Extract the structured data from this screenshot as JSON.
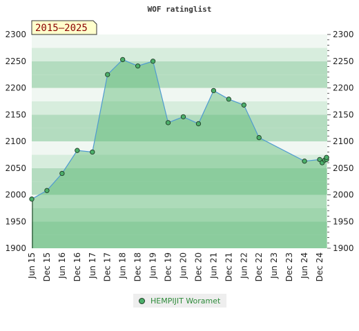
{
  "chart_data": {
    "type": "area",
    "title": "WOF ratinglist",
    "range_badge": "2015–2025",
    "ylim": [
      1900,
      2300
    ],
    "yticks": [
      1900,
      1950,
      2000,
      2050,
      2100,
      2150,
      2200,
      2250,
      2300
    ],
    "xlim": [
      "2015-06",
      "2025-03"
    ],
    "xticks": [
      "Jun 15",
      "Dec 15",
      "Jun 16",
      "Dec 16",
      "Jun 17",
      "Dec 17",
      "Jun 18",
      "Dec 18",
      "Jun 19",
      "Dec 19",
      "Jun 20",
      "Dec 20",
      "Jun 21",
      "Dec 21",
      "Jun 22",
      "Dec 22",
      "Jun 23",
      "Dec 23",
      "Jun 24",
      "Dec 24"
    ],
    "legend_position": "bottom",
    "series": [
      {
        "name": "HEMPIJIT Woramet",
        "x": [
          "2015-06",
          "2015-12",
          "2016-06",
          "2016-12",
          "2017-06",
          "2017-12",
          "2018-06",
          "2018-12",
          "2019-06",
          "2019-12",
          "2020-06",
          "2020-12",
          "2021-06",
          "2021-12",
          "2022-06",
          "2022-12",
          "2024-06",
          "2024-12",
          "2025-01",
          "2025-02",
          "2025-03",
          "2025-04"
        ],
        "values": [
          1992,
          2008,
          2040,
          2083,
          2080,
          2225,
          2253,
          2241,
          2250,
          2135,
          2146,
          2133,
          2195,
          2179,
          2168,
          2107,
          2063,
          2066,
          2060,
          2065,
          2066,
          2070
        ]
      }
    ],
    "colors": {
      "band_dark": "#b3dcbf",
      "band_light": "#f0f7f2",
      "fill": "#5cb874",
      "line": "#4f9ad1",
      "marker": "#4caf6a",
      "marker_stroke": "#1e3a24",
      "badge_bg": "#ffffcc",
      "badge_text": "#8b0000"
    }
  }
}
